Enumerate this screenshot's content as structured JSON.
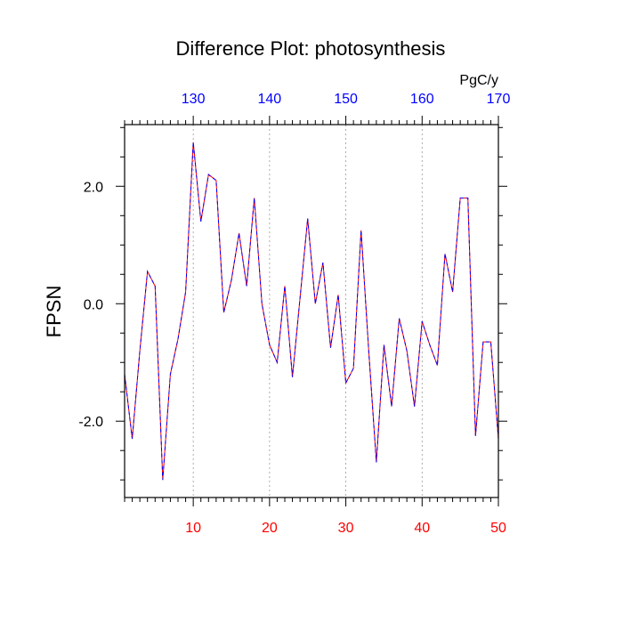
{
  "chart_data": {
    "type": "line",
    "title": "Difference Plot: photosynthesis",
    "ylabel": "FPSN",
    "units_label": "PgC/y",
    "xlim": [
      1,
      50
    ],
    "ylim": [
      -3.3,
      3.05
    ],
    "x_ticks": [
      10,
      20,
      30,
      40,
      50
    ],
    "x_tick_labels": [
      "10",
      "20",
      "30",
      "40",
      "50"
    ],
    "x_tick_color": "#ff0000",
    "top_ticks": [
      10,
      20,
      30,
      40,
      50
    ],
    "top_tick_labels": [
      "130",
      "140",
      "150",
      "160",
      "170"
    ],
    "top_tick_color": "#0000ff",
    "y_ticks": [
      -2.0,
      0.0,
      2.0
    ],
    "y_tick_labels": [
      "-2.0",
      "0.0",
      "2.0"
    ],
    "grid_x": true,
    "series": [
      {
        "line_color": "#ff0000",
        "dash_color": "#0000ff",
        "x": [
          1,
          2,
          3,
          4,
          5,
          6,
          7,
          8,
          9,
          10,
          11,
          12,
          13,
          14,
          15,
          16,
          17,
          18,
          19,
          20,
          21,
          22,
          23,
          24,
          25,
          26,
          27,
          28,
          29,
          30,
          31,
          32,
          33,
          34,
          35,
          36,
          37,
          38,
          39,
          40,
          41,
          42,
          43,
          44,
          45,
          46,
          47,
          48,
          49,
          50
        ],
        "values": [
          -1.2,
          -2.3,
          -0.8,
          0.55,
          0.3,
          -3.0,
          -1.2,
          -0.6,
          0.2,
          2.75,
          1.4,
          2.2,
          2.1,
          -0.15,
          0.4,
          1.2,
          0.3,
          1.8,
          0.0,
          -0.7,
          -1.0,
          0.3,
          -1.25,
          0.1,
          1.45,
          0.0,
          0.7,
          -0.75,
          0.15,
          -1.35,
          -1.1,
          1.25,
          -0.8,
          -2.7,
          -0.7,
          -1.75,
          -0.25,
          -0.8,
          -1.75,
          -0.3,
          -0.7,
          -1.05,
          0.85,
          0.2,
          1.8,
          1.8,
          -2.25,
          -0.65,
          -0.65,
          -2.3
        ]
      }
    ]
  }
}
